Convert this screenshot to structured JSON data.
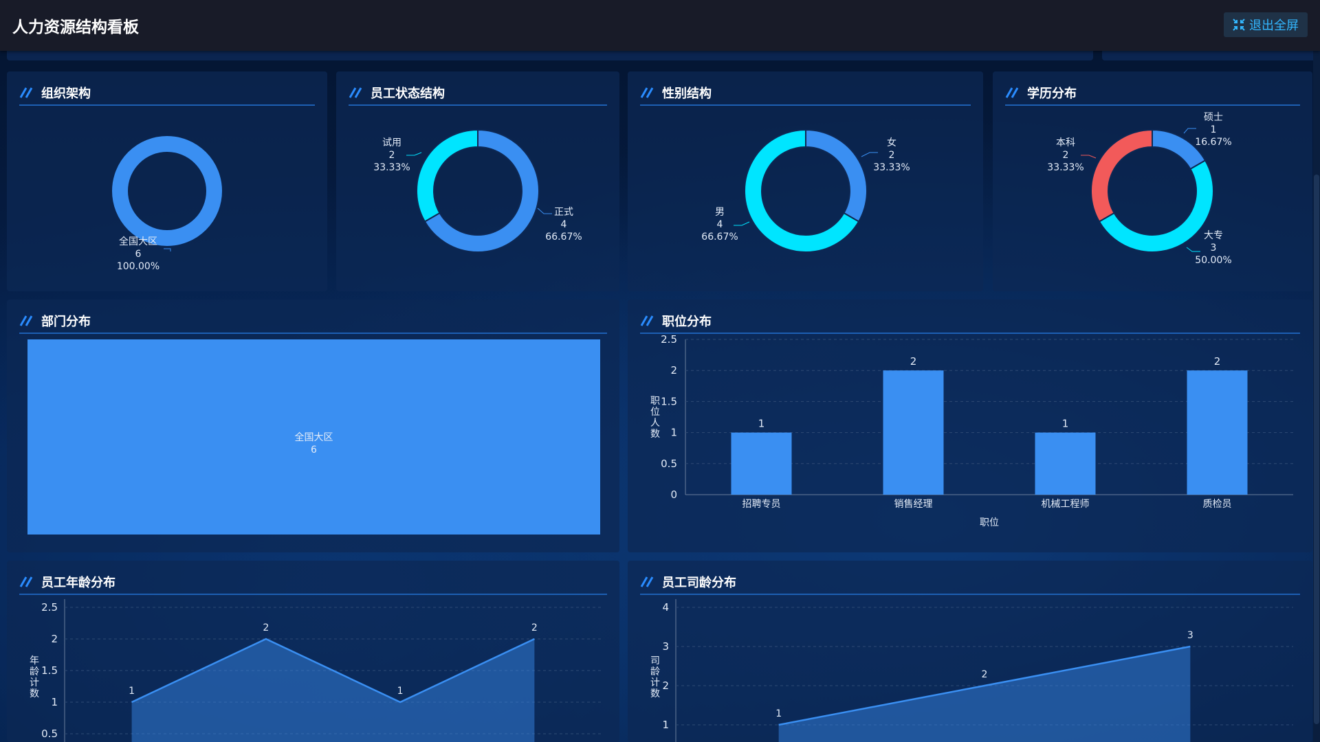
{
  "header": {
    "title": "人力资源结构看板",
    "exit_label": "退出全屏"
  },
  "colors": {
    "blue": "#3a8ff2",
    "cyan": "#00e5ff",
    "red": "#f25a5a"
  },
  "panels": {
    "org": {
      "title": "组织架构"
    },
    "status": {
      "title": "员工状态结构"
    },
    "gender": {
      "title": "性别结构"
    },
    "education": {
      "title": "学历分布"
    },
    "department": {
      "title": "部门分布"
    },
    "position": {
      "title": "职位分布"
    },
    "age": {
      "title": "员工年龄分布"
    },
    "tenure": {
      "title": "员工司龄分布"
    }
  },
  "chart_data": [
    {
      "id": "org",
      "type": "pie",
      "title": "组织架构",
      "slices": [
        {
          "name": "全国大区",
          "value": 6,
          "percent": "100.00%",
          "color": "#3a8ff2"
        }
      ]
    },
    {
      "id": "status",
      "type": "pie",
      "title": "员工状态结构",
      "slices": [
        {
          "name": "正式",
          "value": 4,
          "percent": "66.67%",
          "color": "#3a8ff2"
        },
        {
          "name": "试用",
          "value": 2,
          "percent": "33.33%",
          "color": "#00e5ff"
        }
      ]
    },
    {
      "id": "gender",
      "type": "pie",
      "title": "性别结构",
      "slices": [
        {
          "name": "女",
          "value": 2,
          "percent": "33.33%",
          "color": "#3a8ff2"
        },
        {
          "name": "男",
          "value": 4,
          "percent": "66.67%",
          "color": "#00e5ff"
        }
      ]
    },
    {
      "id": "education",
      "type": "pie",
      "title": "学历分布",
      "slices": [
        {
          "name": "硕士",
          "value": 1,
          "percent": "16.67%",
          "color": "#3a8ff2"
        },
        {
          "name": "大专",
          "value": 3,
          "percent": "50.00%",
          "color": "#00e5ff"
        },
        {
          "name": "本科",
          "value": 2,
          "percent": "33.33%",
          "color": "#f25a5a"
        }
      ]
    },
    {
      "id": "department",
      "type": "treemap",
      "title": "部门分布",
      "items": [
        {
          "name": "全国大区",
          "value": 6
        }
      ]
    },
    {
      "id": "position",
      "type": "bar",
      "title": "职位分布",
      "categories": [
        "招聘专员",
        "销售经理",
        "机械工程师",
        "质检员"
      ],
      "values": [
        1,
        2,
        1,
        2
      ],
      "xlabel": "职位",
      "ylabel": "职位人数",
      "ylim": [
        0,
        2.5
      ],
      "yticks": [
        "0",
        "0.5",
        "1",
        "1.5",
        "2",
        "2.5"
      ]
    },
    {
      "id": "age",
      "type": "area",
      "title": "员工年龄分布",
      "values": [
        1,
        2,
        1,
        2
      ],
      "ylabel": "年龄计数",
      "ylim": [
        0,
        2.5
      ],
      "yticks": [
        "0.5",
        "1",
        "1.5",
        "2",
        "2.5"
      ]
    },
    {
      "id": "tenure",
      "type": "area",
      "title": "员工司龄分布",
      "values": [
        1,
        2,
        3
      ],
      "ylabel": "司龄计数",
      "ylim": [
        0,
        4
      ],
      "yticks": [
        "1",
        "2",
        "3",
        "4"
      ]
    }
  ]
}
